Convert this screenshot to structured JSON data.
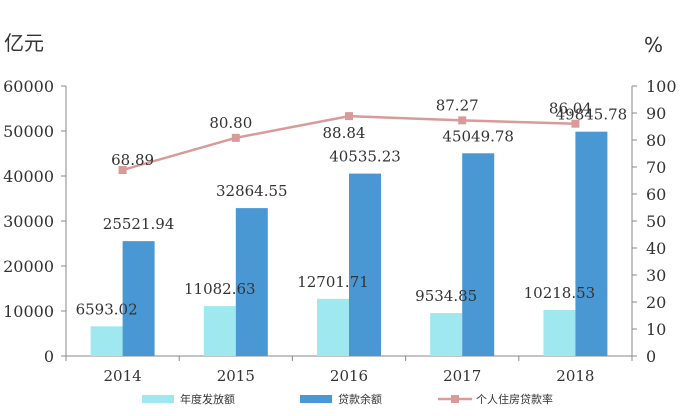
{
  "chart_data": {
    "type": "bar",
    "categories": [
      "2014",
      "2015",
      "2016",
      "2017",
      "2018"
    ],
    "series": [
      {
        "name": "年度发放额",
        "kind": "bar",
        "axis": "left",
        "color": "#9fe8f0",
        "values": [
          6593.02,
          11082.63,
          12701.71,
          9534.85,
          10218.53
        ],
        "labels": [
          "6593.02",
          "11082.63",
          "12701.71",
          "9534.85",
          "10218.53"
        ]
      },
      {
        "name": "贷款余额",
        "kind": "bar",
        "axis": "left",
        "color": "#4a98d3",
        "values": [
          25521.94,
          32864.55,
          40535.23,
          45049.78,
          49845.78
        ],
        "labels": [
          "25521.94",
          "32864.55",
          "40535.23",
          "45049.78",
          "49845.78"
        ]
      },
      {
        "name": "个人住房贷款率",
        "kind": "line",
        "axis": "right",
        "color": "#d99a9a",
        "values": [
          68.89,
          80.8,
          88.84,
          87.27,
          86.04
        ],
        "labels": [
          "68.89",
          "80.80",
          "88.84",
          "87.27",
          "86.04"
        ]
      }
    ],
    "y_left": {
      "unit": "亿元",
      "ylim": [
        0,
        60000
      ],
      "ticks": [
        "0",
        "10000",
        "20000",
        "30000",
        "40000",
        "50000",
        "60000"
      ]
    },
    "y_right": {
      "unit": "%",
      "ylim": [
        0,
        100
      ],
      "ticks": [
        "0",
        "10",
        "20",
        "30",
        "40",
        "50",
        "60",
        "70",
        "80",
        "90",
        "100"
      ]
    },
    "grid": false,
    "legend_position": "bottom"
  }
}
